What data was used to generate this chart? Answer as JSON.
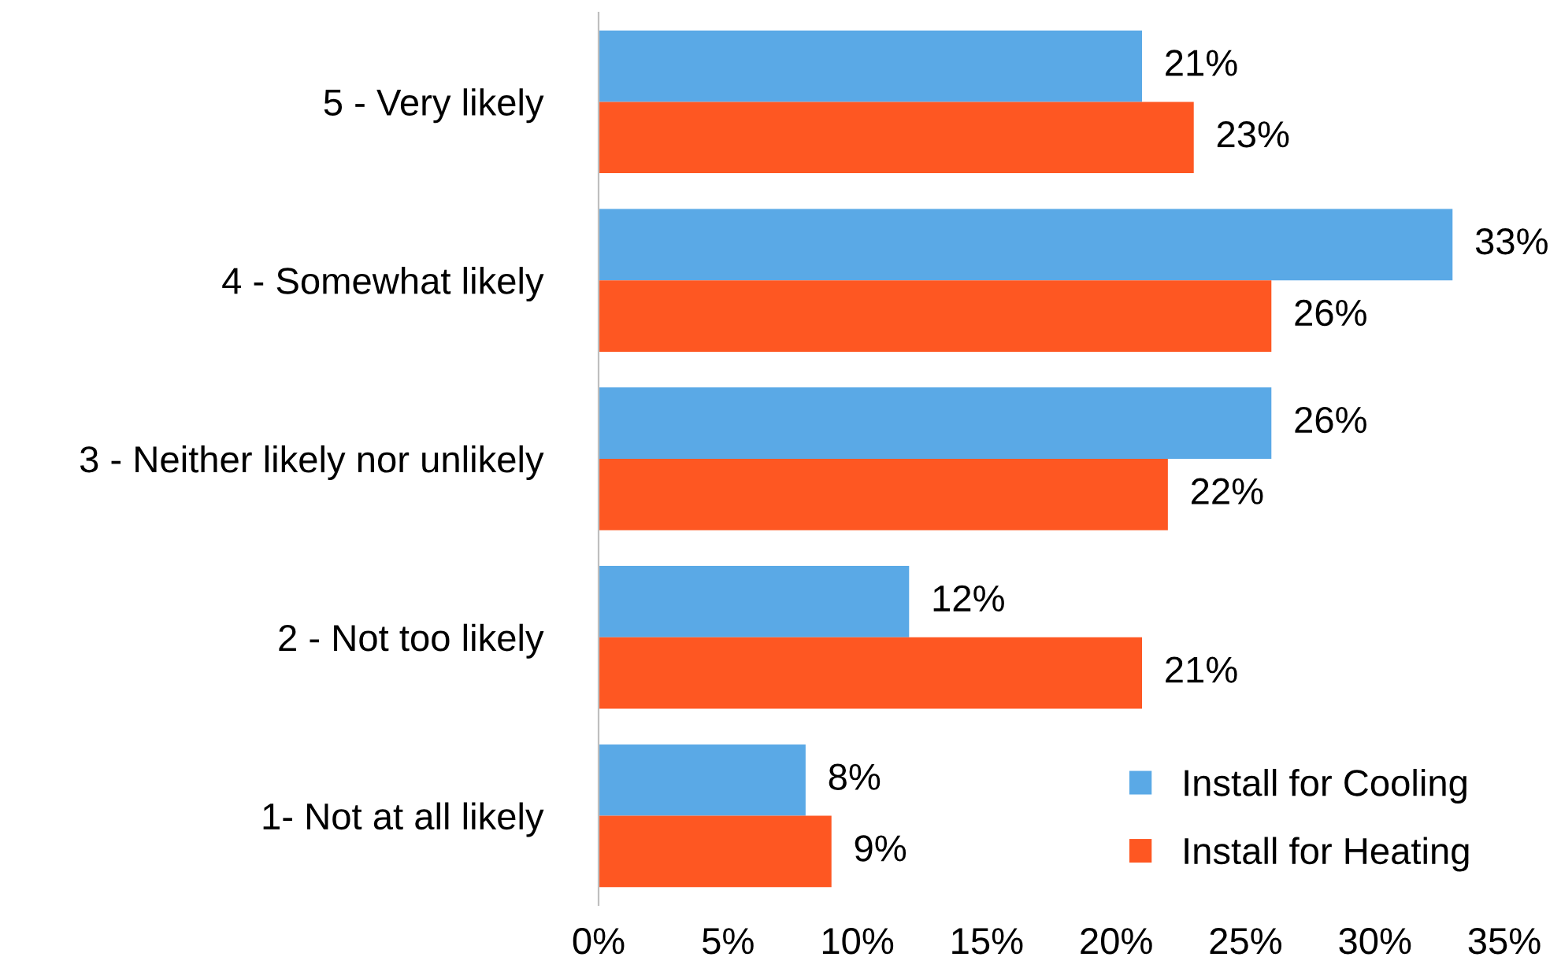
{
  "chart_data": {
    "type": "bar",
    "orientation": "horizontal",
    "categories": [
      "5 - Very likely",
      "4 - Somewhat likely",
      "3 - Neither likely nor unlikely",
      "2 - Not too likely",
      "1- Not at all likely"
    ],
    "series": [
      {
        "name": "Install for Cooling",
        "color": "#5aa9e6",
        "values": [
          21,
          33,
          26,
          12,
          8
        ],
        "value_labels": [
          "21%",
          "33%",
          "26%",
          "12%",
          "8%"
        ]
      },
      {
        "name": "Install for Heating",
        "color": "#fe5722",
        "values": [
          23,
          26,
          22,
          21,
          9
        ],
        "value_labels": [
          "23%",
          "26%",
          "22%",
          "21%",
          "9%"
        ]
      }
    ],
    "xlim": [
      0,
      35
    ],
    "xticks": [
      {
        "value": 0,
        "label": "0%"
      },
      {
        "value": 5,
        "label": "5%"
      },
      {
        "value": 10,
        "label": "10%"
      },
      {
        "value": 15,
        "label": "15%"
      },
      {
        "value": 20,
        "label": "20%"
      },
      {
        "value": 25,
        "label": "25%"
      },
      {
        "value": 30,
        "label": "30%"
      },
      {
        "value": 35,
        "label": "35%"
      }
    ],
    "legend": "bottom right",
    "grid": false
  }
}
